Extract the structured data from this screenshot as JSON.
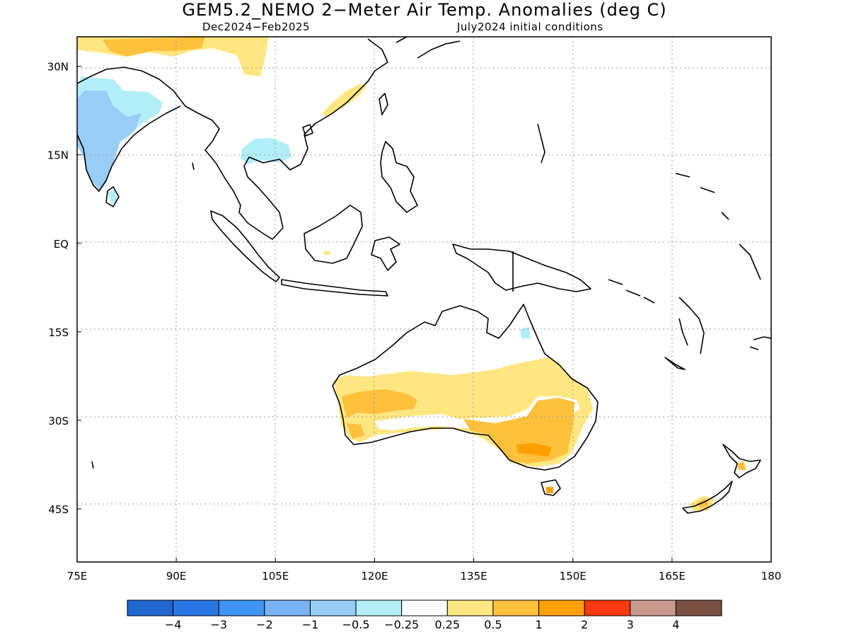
{
  "header": {
    "title": "GEM5.2_NEMO 2−Meter Air Temp. Anomalies (deg C)",
    "period": "Dec2024−Feb2025",
    "init": "July2024 initial conditions"
  },
  "map": {
    "lon_range": [
      75,
      180
    ],
    "lat_range": [
      -54,
      35
    ],
    "lon_ticks": [
      {
        "value": 75,
        "label": "75E"
      },
      {
        "value": 90,
        "label": "90E"
      },
      {
        "value": 105,
        "label": "105E"
      },
      {
        "value": 120,
        "label": "120E"
      },
      {
        "value": 135,
        "label": "135E"
      },
      {
        "value": 150,
        "label": "150E"
      },
      {
        "value": 165,
        "label": "165E"
      },
      {
        "value": 180,
        "label": "180"
      }
    ],
    "lat_ticks": [
      {
        "value": 30,
        "label": "30N"
      },
      {
        "value": 15,
        "label": "15N"
      },
      {
        "value": 0,
        "label": "EQ"
      },
      {
        "value": -15,
        "label": "15S"
      },
      {
        "value": -30,
        "label": "30S"
      },
      {
        "value": -45,
        "label": "45S"
      }
    ],
    "grid": true
  },
  "colorbar": {
    "colors": [
      "#1f66d0",
      "#2a78e8",
      "#3f95f2",
      "#78b4f5",
      "#98cdf7",
      "#b2eef8",
      "#ffffff",
      "#ffe680",
      "#ffc03c",
      "#ffa000",
      "#ff3a10",
      "#c89a8e",
      "#7a5040"
    ],
    "labels": [
      "−4",
      "−3",
      "−2",
      "−1",
      "−0.5",
      "−0.25",
      "0.25",
      "0.5",
      "1",
      "2",
      "3",
      "4"
    ]
  },
  "anomaly_palette": {
    "neg_0_5": "#98cdf7",
    "neg_0_25": "#b2eef8",
    "pos_0_25": "#ffe680",
    "pos_0_5": "#ffc03c",
    "pos_1": "#ffa000"
  }
}
